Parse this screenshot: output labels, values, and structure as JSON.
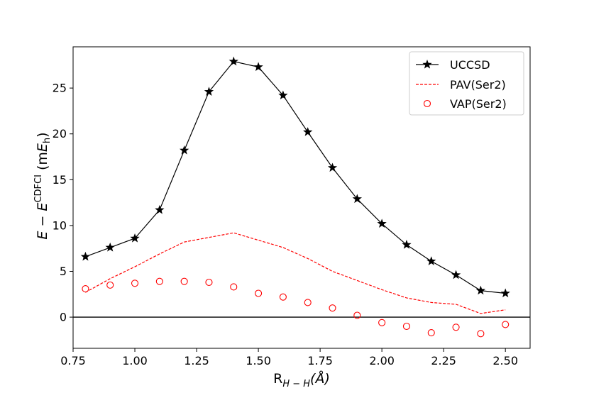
{
  "chart_data": {
    "type": "line",
    "xlabel_main": "R",
    "xlabel_sub": "H − H",
    "xlabel_unit": "(Å)",
    "ylabel_E": "E",
    "ylabel_minus": " − ",
    "ylabel_E2": "E",
    "ylabel_sup": "CDFCI",
    "ylabel_unit_open": " (m",
    "ylabel_unit_E": "E",
    "ylabel_unit_sub": "h",
    "ylabel_unit_close": ")",
    "xlim": [
      0.75,
      2.6
    ],
    "ylim": [
      -3.4,
      29.5
    ],
    "xticks": [
      0.75,
      1.0,
      1.25,
      1.5,
      1.75,
      2.0,
      2.25,
      2.5
    ],
    "xtick_labels": [
      "0.75",
      "1.00",
      "1.25",
      "1.50",
      "1.75",
      "2.00",
      "2.25",
      "2.50"
    ],
    "yticks": [
      0,
      5,
      10,
      15,
      20,
      25
    ],
    "ytick_labels": [
      "0",
      "5",
      "10",
      "15",
      "20",
      "25"
    ],
    "hline_y": 0,
    "legend_position": "top-right",
    "x": [
      0.8,
      0.9,
      1.0,
      1.1,
      1.2,
      1.3,
      1.4,
      1.5,
      1.6,
      1.7,
      1.8,
      1.9,
      2.0,
      2.1,
      2.2,
      2.3,
      2.4,
      2.5
    ],
    "series": [
      {
        "name": "UCCSD",
        "style": "solid-line-star",
        "color": "#000000",
        "values": [
          6.6,
          7.6,
          8.6,
          11.7,
          18.2,
          24.6,
          27.9,
          27.3,
          24.2,
          20.2,
          16.3,
          12.9,
          10.2,
          7.9,
          6.1,
          4.6,
          2.9,
          2.6
        ]
      },
      {
        "name": "PAV(Ser2)",
        "style": "dashed-line",
        "color": "#ff0000",
        "values": [
          2.7,
          4.2,
          5.5,
          6.9,
          8.2,
          8.7,
          9.2,
          8.4,
          7.6,
          6.4,
          5.0,
          4.0,
          3.0,
          2.1,
          1.6,
          1.4,
          0.4,
          0.8
        ]
      },
      {
        "name": "VAP(Ser2)",
        "style": "open-circle-markers",
        "color": "#ff0000",
        "values": [
          3.1,
          3.5,
          3.7,
          3.9,
          3.9,
          3.8,
          3.3,
          2.6,
          2.2,
          1.6,
          1.0,
          0.2,
          -0.6,
          -1.0,
          -1.7,
          -1.1,
          -1.8,
          -0.8
        ]
      }
    ]
  }
}
